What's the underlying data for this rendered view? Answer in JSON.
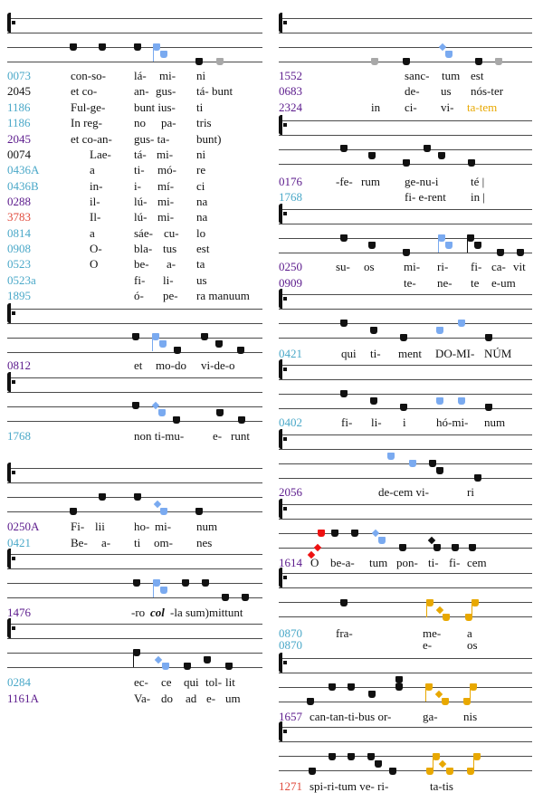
{
  "colors": {
    "black": "#111111",
    "cyan": "#4aa8c8",
    "purple": "#5b1a8c",
    "red": "#e04a3c",
    "gold": "#e8a800",
    "blue_note": "#7aaaf0",
    "gray_note": "#a8a8a8",
    "red_note": "#ee1111"
  },
  "systems": [
    {
      "rows": [
        {
          "id": "0073",
          "color": "cyan",
          "syllables": [
            "con-so-",
            "lá-",
            "mi-",
            "ni"
          ]
        },
        {
          "id": "2045",
          "color": "black",
          "syllables": [
            "et co-",
            "an-",
            "gus-",
            "tá- bunt"
          ]
        },
        {
          "id": "1186",
          "color": "cyan",
          "syllables": [
            "Ful-ge-",
            "bunt ius-",
            "ti"
          ]
        },
        {
          "id": "1186",
          "color": "cyan",
          "syllables": [
            "In reg-",
            "no",
            "pa-",
            "tris"
          ]
        },
        {
          "id": "2045",
          "color": "purple",
          "syllables": [
            "et co-an-",
            "gus- ta-",
            "bunt)"
          ]
        },
        {
          "id": "0074",
          "color": "black",
          "syllables": [
            "Lae-",
            "tá-",
            "mi-",
            "ni"
          ]
        },
        {
          "id": "0436A",
          "color": "cyan",
          "syllables": [
            "a",
            "ti-",
            "mó-",
            "re"
          ]
        },
        {
          "id": "0436B",
          "color": "cyan",
          "syllables": [
            "in-",
            "i-",
            "mí-",
            "ci"
          ]
        },
        {
          "id": "0288",
          "color": "purple",
          "syllables": [
            "il-",
            "lú-",
            "mi-",
            "na"
          ]
        },
        {
          "id": "3783",
          "color": "red",
          "syllables": [
            "Il-",
            "lú-",
            "mi-",
            "na"
          ]
        },
        {
          "id": "0814",
          "color": "cyan",
          "syllables": [
            "a",
            "sáe-",
            "cu-",
            "lo"
          ]
        },
        {
          "id": "0908",
          "color": "cyan",
          "syllables": [
            "O-",
            "bla-",
            "tus",
            "est"
          ]
        },
        {
          "id": "0523",
          "color": "cyan",
          "syllables": [
            "O",
            "be-",
            "a-",
            "ta"
          ]
        },
        {
          "id": "0523a",
          "color": "cyan",
          "syllables": [
            "fi-",
            "li-",
            "us"
          ]
        },
        {
          "id": "1895",
          "color": "cyan",
          "syllables": [
            "ó-",
            "pe-",
            "ra manuum"
          ]
        }
      ]
    },
    {
      "rows": [
        {
          "id": "0812",
          "color": "purple",
          "syllables": [
            "et",
            "mo-do",
            "vi-de-o"
          ]
        }
      ]
    },
    {
      "rows": [
        {
          "id": "1768",
          "color": "cyan",
          "syllables": [
            "non ti-mu-",
            "e-",
            "runt"
          ]
        }
      ]
    },
    {
      "rows": [
        {
          "id": "0250A",
          "color": "purple",
          "syllables": [
            "Fi-",
            "lii",
            "ho-",
            "mi-",
            "num"
          ]
        },
        {
          "id": "0421",
          "color": "cyan",
          "syllables": [
            "Be-",
            "a-",
            "ti",
            "om-",
            "nes"
          ]
        }
      ]
    },
    {
      "rows": [
        {
          "id": "1476",
          "color": "purple",
          "syllables": [
            "-ro ",
            "col",
            "-la sum)mittunt"
          ],
          "emphasis_index": 1
        }
      ]
    },
    {
      "rows": [
        {
          "id": "0284",
          "color": "cyan",
          "syllables": [
            "ec-",
            "ce",
            "qui",
            "tol-",
            "lit"
          ]
        },
        {
          "id": "1161A",
          "color": "purple",
          "syllables": [
            "Va-",
            "do",
            "ad",
            "e-",
            "um"
          ]
        }
      ]
    },
    {
      "rows": [
        {
          "id": "1552",
          "color": "purple",
          "syllables": [
            "sanc-",
            "tum",
            "est"
          ]
        },
        {
          "id": "0683",
          "color": "purple",
          "syllables": [
            "de-",
            "us",
            "nós-ter"
          ]
        },
        {
          "id": "2324",
          "color": "purple",
          "syllables": [
            "in",
            "ci-",
            "vi-",
            "ta-tem"
          ],
          "highlight_index": 3,
          "highlight_color": "gold"
        }
      ]
    },
    {
      "rows": [
        {
          "id": "0176",
          "color": "purple",
          "syllables": [
            "-fe-",
            "rum",
            "ge-nu-i",
            "té |"
          ]
        },
        {
          "id": "1768",
          "color": "cyan",
          "syllables": [
            "fi- e-rent",
            "in |"
          ]
        }
      ]
    },
    {
      "rows": [
        {
          "id": "0250",
          "color": "purple",
          "syllables": [
            "su-",
            "os",
            "mi-",
            "ri-",
            "fi-",
            "ca-",
            "vit"
          ]
        },
        {
          "id": "0909",
          "color": "purple",
          "syllables": [
            "te-",
            "ne-",
            "te",
            "e-um"
          ]
        }
      ]
    },
    {
      "rows": [
        {
          "id": "0421",
          "color": "cyan",
          "syllables": [
            "qui",
            "ti-",
            "ment",
            "DO-MI-",
            "NÚM"
          ]
        }
      ]
    },
    {
      "rows": [
        {
          "id": "0402",
          "color": "cyan",
          "syllables": [
            "fi-",
            "li-",
            "i",
            "hó-mi-",
            "num"
          ]
        }
      ]
    },
    {
      "rows": [
        {
          "id": "2056",
          "color": "purple",
          "syllables": [
            "de-cem vi-",
            "ri"
          ]
        }
      ]
    },
    {
      "rows": [
        {
          "id": "1614",
          "color": "purple",
          "syllables": [
            "O",
            "be-a-",
            "tum",
            "pon-",
            "ti-",
            "fi-",
            "cem"
          ]
        }
      ]
    },
    {
      "rows": [
        {
          "id": "0870",
          "color": "cyan",
          "syllables": [
            "fra-",
            "me-",
            "a"
          ]
        },
        {
          "id": "0870",
          "color": "cyan",
          "syllables": [
            "e-",
            "os"
          ]
        }
      ]
    },
    {
      "rows": [
        {
          "id": "1657",
          "color": "purple",
          "syllables": [
            "can-tan-ti-bus or-",
            "ga-",
            "nis"
          ]
        }
      ]
    },
    {
      "rows": [
        {
          "id": "1271",
          "color": "red",
          "syllables": [
            "spi-ri-tum ve- ri-",
            "ta-tis"
          ]
        }
      ]
    }
  ]
}
